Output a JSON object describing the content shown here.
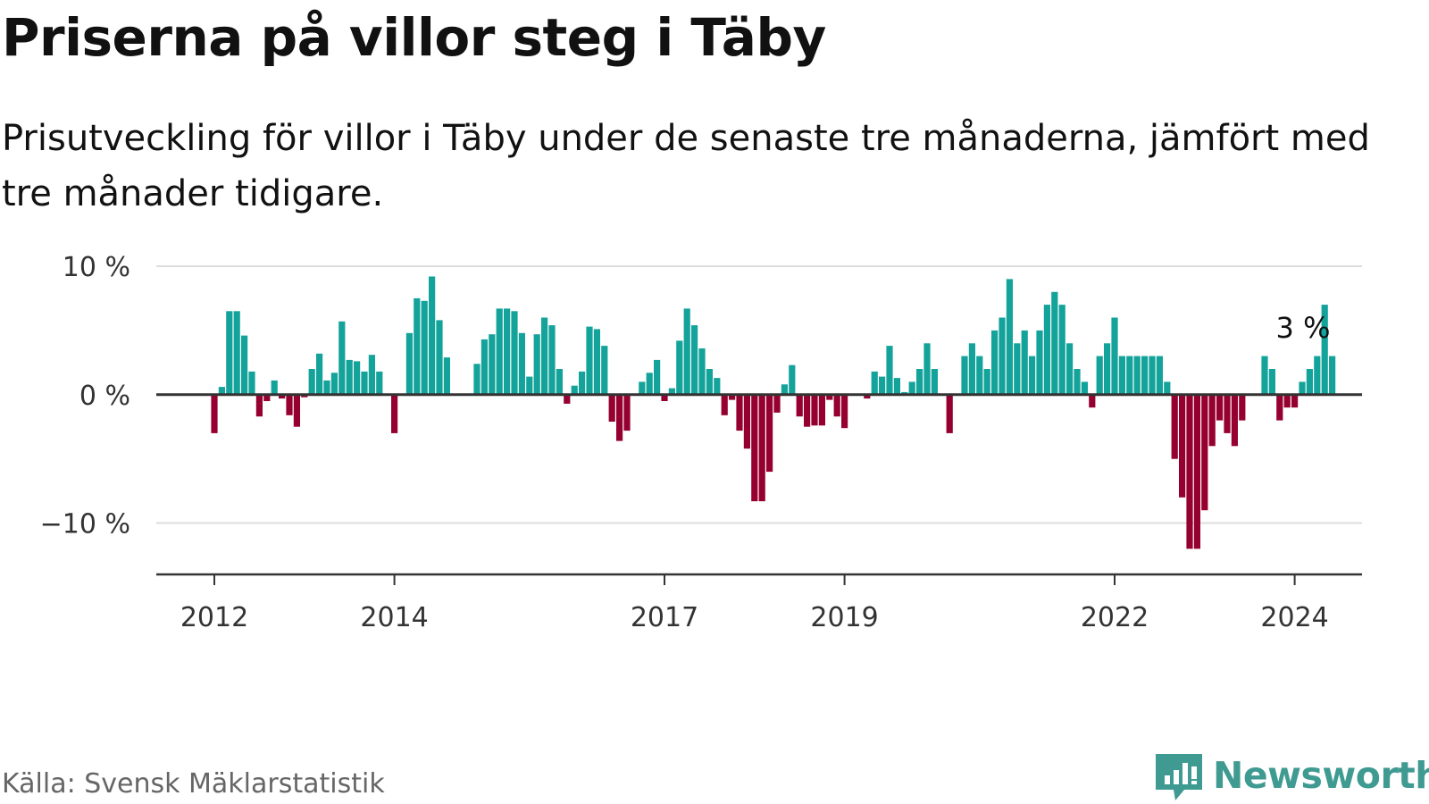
{
  "title": "Priserna på villor steg i Täby",
  "subtitle": "Prisutveckling för villor i Täby under de senaste tre månaderna, jämfört med tre månader tidigare.",
  "source": "Källa: Svensk Mäklarstatistik",
  "brand": "Newsworthy",
  "colors": {
    "positive": "#13a39a",
    "negative": "#960030",
    "grid": "#dddddd",
    "axis": "#333333",
    "brand": "#3f9a91"
  },
  "chart_data": {
    "type": "bar",
    "title": "Priserna på villor steg i Täby",
    "xlabel": "",
    "ylabel": "",
    "ylim": [
      -14,
      10
    ],
    "yticks": [
      10,
      0,
      -10
    ],
    "ytick_labels": [
      "10 %",
      "0 %",
      "−10 %"
    ],
    "xticks": [
      {
        "label": "2012",
        "index": 0
      },
      {
        "label": "2014",
        "index": 24
      },
      {
        "label": "2017",
        "index": 60
      },
      {
        "label": "2019",
        "index": 84
      },
      {
        "label": "2022",
        "index": 120
      },
      {
        "label": "2024",
        "index": 144
      }
    ],
    "start": "2012-01",
    "values": [
      -3.0,
      0.6,
      6.5,
      6.5,
      4.6,
      1.8,
      -1.7,
      -0.5,
      1.1,
      -0.3,
      -1.6,
      -2.5,
      -0.2,
      2.0,
      3.2,
      1.1,
      1.7,
      5.7,
      2.7,
      2.6,
      1.8,
      3.1,
      1.8,
      0.0,
      -3.0,
      0.0,
      4.8,
      7.5,
      7.3,
      9.2,
      5.8,
      2.9,
      0.0,
      0.0,
      0.0,
      2.4,
      4.3,
      4.7,
      6.7,
      6.7,
      6.5,
      4.8,
      1.4,
      4.7,
      6.0,
      5.4,
      2.0,
      -0.7,
      0.7,
      1.8,
      5.3,
      5.1,
      3.8,
      -2.1,
      -3.6,
      -2.8,
      0.0,
      1.0,
      1.7,
      2.7,
      -0.5,
      0.5,
      4.2,
      6.7,
      5.4,
      3.6,
      2.0,
      1.3,
      -1.6,
      -0.4,
      -2.8,
      -4.2,
      -8.3,
      -8.3,
      -6.0,
      -1.4,
      0.8,
      2.3,
      -1.7,
      -2.5,
      -2.4,
      -2.4,
      -0.4,
      -1.7,
      -2.6,
      0.0,
      0.0,
      -0.3,
      1.8,
      1.4,
      3.8,
      1.3,
      0.2,
      1.0,
      2.0,
      4.0,
      2.0,
      0.0,
      -3.0,
      0.0,
      3.0,
      4.0,
      3.0,
      2.0,
      5.0,
      6.0,
      9.0,
      4.0,
      5.0,
      3.0,
      5.0,
      7.0,
      8.0,
      7.0,
      4.0,
      2.0,
      1.0,
      -1.0,
      3.0,
      4.0,
      6.0,
      3.0,
      3.0,
      3.0,
      3.0,
      3.0,
      3.0,
      1.0,
      -5.0,
      -8.0,
      -12.0,
      -12.0,
      -9.0,
      -4.0,
      -2.0,
      -3.0,
      -4.0,
      -2.0,
      0.0,
      0.0,
      3.0,
      2.0,
      -2.0,
      -1.0,
      -1.0,
      1.0,
      2.0,
      3.0,
      7.0,
      3.0
    ],
    "annotation": {
      "label": "3 %",
      "index": 145
    }
  }
}
